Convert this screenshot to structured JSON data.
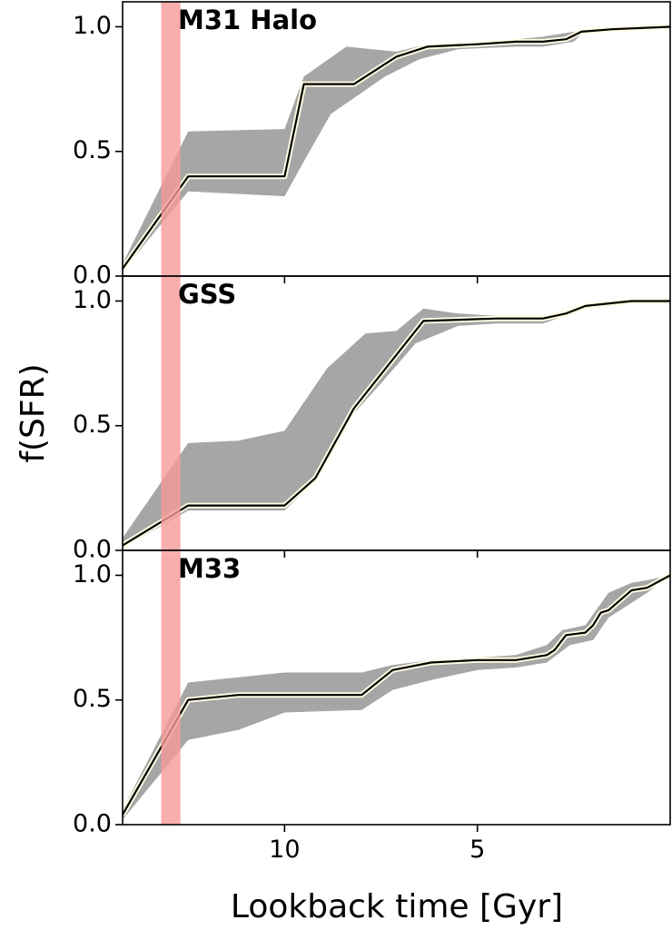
{
  "figure": {
    "xlabel": "Lookback time [Gyr]",
    "ylabel": "f(SFR)",
    "colors": {
      "band": "#a6a6a6",
      "median_line": "#000000",
      "highlight_line": "#fffde0",
      "shaded_region": "#f79a9a",
      "axes": "#000000"
    }
  },
  "chart_data": [
    {
      "type": "line",
      "title": "M31 Halo",
      "xlabel": "Lookback time [Gyr]",
      "ylabel": "f(SFR)",
      "xlim": [
        14.2,
        0
      ],
      "x_reversed": true,
      "ylim": [
        0.0,
        1.1
      ],
      "x_ticks": [
        10,
        5
      ],
      "x_tick_labels": [
        "10",
        "5"
      ],
      "y_ticks": [
        0.0,
        0.5,
        1.0
      ],
      "y_tick_labels": [
        "0.0",
        "0.5",
        "1.0"
      ],
      "shaded_region": {
        "x_from": 13.2,
        "x_to": 12.7,
        "color": "#f79a9a"
      },
      "median": {
        "x": [
          14.2,
          12.5,
          10.0,
          9.5,
          8.2,
          7.1,
          6.3,
          5.0,
          4.0,
          3.3,
          2.7,
          2.3,
          1.5,
          0.0
        ],
        "y": [
          0.03,
          0.4,
          0.4,
          0.77,
          0.77,
          0.88,
          0.92,
          0.93,
          0.94,
          0.94,
          0.95,
          0.98,
          0.99,
          1.0
        ]
      },
      "band_upper": {
        "x": [
          14.2,
          12.5,
          10.0,
          9.5,
          8.4,
          7.1,
          6.3,
          5.0,
          4.0,
          3.3,
          2.5,
          2.3,
          1.5,
          0.0
        ],
        "y": [
          0.05,
          0.58,
          0.59,
          0.8,
          0.92,
          0.9,
          0.93,
          0.94,
          0.95,
          0.96,
          0.98,
          0.98,
          0.99,
          1.0
        ]
      },
      "band_lower": {
        "x": [
          14.2,
          12.5,
          10.0,
          9.5,
          8.8,
          7.4,
          6.5,
          5.5,
          4.0,
          3.3,
          2.5,
          2.3,
          1.5,
          0.0
        ],
        "y": [
          0.02,
          0.34,
          0.32,
          0.46,
          0.65,
          0.8,
          0.87,
          0.91,
          0.92,
          0.92,
          0.94,
          0.97,
          0.99,
          1.0
        ]
      }
    },
    {
      "type": "line",
      "title": "GSS",
      "xlabel": "Lookback time [Gyr]",
      "ylabel": "f(SFR)",
      "xlim": [
        14.2,
        0
      ],
      "x_reversed": true,
      "ylim": [
        0.0,
        1.1
      ],
      "x_ticks": [
        10,
        5
      ],
      "x_tick_labels": [
        "10",
        "5"
      ],
      "y_ticks": [
        0.0,
        0.5,
        1.0
      ],
      "y_tick_labels": [
        "0.0",
        "0.5",
        "1.0"
      ],
      "shaded_region": {
        "x_from": 13.2,
        "x_to": 12.7,
        "color": "#f79a9a"
      },
      "median": {
        "x": [
          14.2,
          12.5,
          10.0,
          9.2,
          8.2,
          6.4,
          4.5,
          3.3,
          2.7,
          2.2,
          1.0,
          0.0
        ],
        "y": [
          0.02,
          0.18,
          0.18,
          0.29,
          0.57,
          0.92,
          0.93,
          0.93,
          0.95,
          0.98,
          1.0,
          1.0
        ]
      },
      "band_upper": {
        "x": [
          14.2,
          12.5,
          11.2,
          10.0,
          8.9,
          7.9,
          7.1,
          6.4,
          5.5,
          4.5,
          3.3,
          2.2,
          1.0,
          0.0
        ],
        "y": [
          0.05,
          0.43,
          0.44,
          0.48,
          0.73,
          0.87,
          0.88,
          0.97,
          0.95,
          0.94,
          0.94,
          0.98,
          1.0,
          1.0
        ]
      },
      "band_lower": {
        "x": [
          14.2,
          12.5,
          10.0,
          9.4,
          8.2,
          7.5,
          6.6,
          5.5,
          4.5,
          3.3,
          2.2,
          1.0,
          0.0
        ],
        "y": [
          0.01,
          0.16,
          0.16,
          0.25,
          0.55,
          0.67,
          0.83,
          0.9,
          0.91,
          0.91,
          0.97,
          0.99,
          1.0
        ]
      }
    },
    {
      "type": "line",
      "title": "M33",
      "xlabel": "Lookback time [Gyr]",
      "ylabel": "f(SFR)",
      "xlim": [
        14.2,
        0
      ],
      "x_reversed": true,
      "ylim": [
        0.0,
        1.1
      ],
      "x_ticks": [
        10,
        5
      ],
      "x_tick_labels": [
        "10",
        "5"
      ],
      "y_ticks": [
        0.0,
        0.5,
        1.0
      ],
      "y_tick_labels": [
        "0.0",
        "0.5",
        "1.0"
      ],
      "shaded_region": {
        "x_from": 13.2,
        "x_to": 12.7,
        "color": "#f79a9a"
      },
      "median": {
        "x": [
          14.2,
          12.5,
          11.2,
          10.0,
          8.0,
          7.2,
          6.2,
          5.0,
          4.0,
          3.2,
          3.0,
          2.7,
          2.2,
          2.0,
          1.8,
          1.6,
          1.0,
          0.6,
          0.0
        ],
        "y": [
          0.04,
          0.5,
          0.52,
          0.52,
          0.52,
          0.62,
          0.65,
          0.66,
          0.66,
          0.68,
          0.7,
          0.76,
          0.77,
          0.8,
          0.85,
          0.86,
          0.94,
          0.95,
          1.0
        ]
      },
      "band_upper": {
        "x": [
          14.2,
          12.5,
          10.0,
          8.0,
          7.2,
          6.2,
          5.0,
          4.0,
          3.2,
          2.8,
          2.2,
          1.6,
          1.0,
          0.6,
          0.0
        ],
        "y": [
          0.06,
          0.57,
          0.61,
          0.61,
          0.64,
          0.66,
          0.67,
          0.68,
          0.72,
          0.78,
          0.8,
          0.93,
          0.97,
          0.98,
          1.0
        ]
      },
      "band_lower": {
        "x": [
          14.2,
          12.5,
          11.2,
          10.0,
          8.0,
          7.2,
          6.2,
          5.0,
          4.0,
          3.2,
          2.6,
          2.0,
          1.6,
          1.0,
          0.6,
          0.0
        ],
        "y": [
          0.02,
          0.34,
          0.38,
          0.45,
          0.46,
          0.54,
          0.58,
          0.62,
          0.63,
          0.65,
          0.72,
          0.74,
          0.83,
          0.89,
          0.93,
          1.0
        ]
      }
    }
  ]
}
